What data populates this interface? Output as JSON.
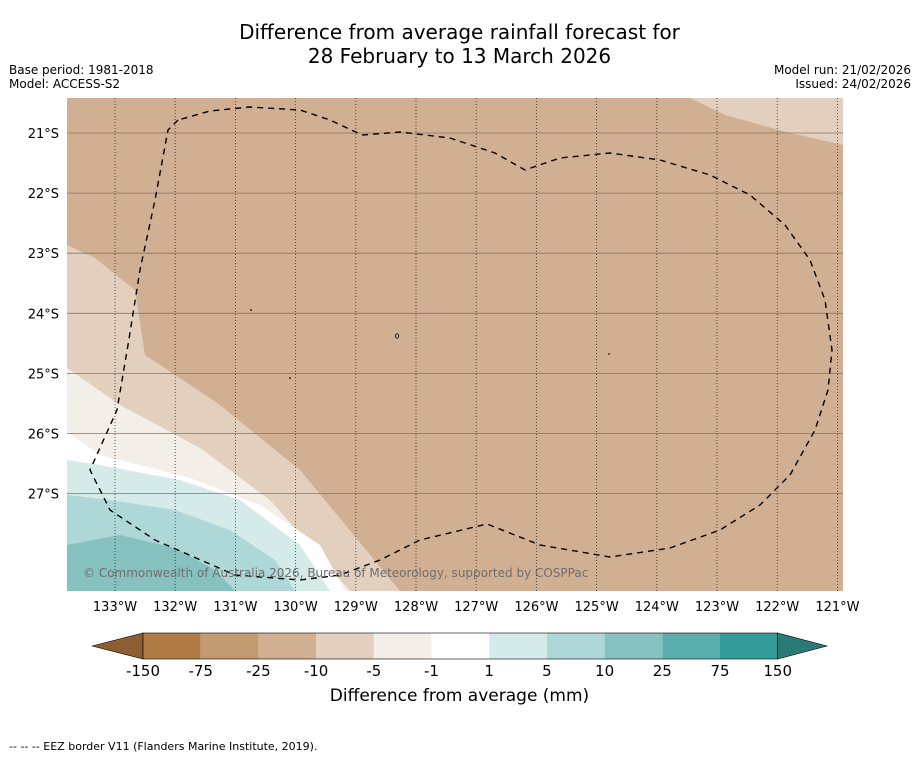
{
  "title": {
    "line1": "Difference from average rainfall forecast for",
    "line2": "28 February to 13 March 2026"
  },
  "meta": {
    "base_period": "Base period: 1981-2018",
    "model": "Model: ACCESS-S2",
    "model_run": "Model run: 21/02/2026",
    "issued": "Issued: 24/02/2026"
  },
  "map": {
    "copyright": "© Commonwealth of Australia 2026, Bureau of Meteorology, supported by COSPPac",
    "longitude_labels": [
      "133°W",
      "132°W",
      "131°W",
      "130°W",
      "129°W",
      "128°W",
      "127°W",
      "126°W",
      "125°W",
      "124°W",
      "123°W",
      "122°W",
      "121°W"
    ],
    "latitude_labels": [
      "21°S",
      "22°S",
      "23°S",
      "24°S",
      "25°S",
      "26°S",
      "27°S"
    ],
    "colors": {
      "dry_strong": "#d0af92",
      "dry_mid": "#e3cfbe",
      "dry_light": "#f3efe8",
      "neutral": "#ffffff",
      "wet_light": "#d5ebea",
      "wet_mid": "#add8d7",
      "wet_strong": "#85c1bf"
    }
  },
  "colorbar": {
    "title": "Difference from average (mm)",
    "tick_labels": [
      "-150",
      "-75",
      "-25",
      "-10",
      "-5",
      "-1",
      "1",
      "5",
      "10",
      "25",
      "75",
      "150"
    ],
    "colors": [
      "#8e5e32",
      "#b07a45",
      "#c49a72",
      "#d0af92",
      "#e3cfbe",
      "#f3efe8",
      "#ffffff",
      "#d5ebea",
      "#add8d7",
      "#85c1bf",
      "#5aaeac",
      "#339b98",
      "#2a7a78"
    ]
  },
  "footnote": "-- -- -- EEZ border V11 (Flanders Marine Institute, 2019)."
}
